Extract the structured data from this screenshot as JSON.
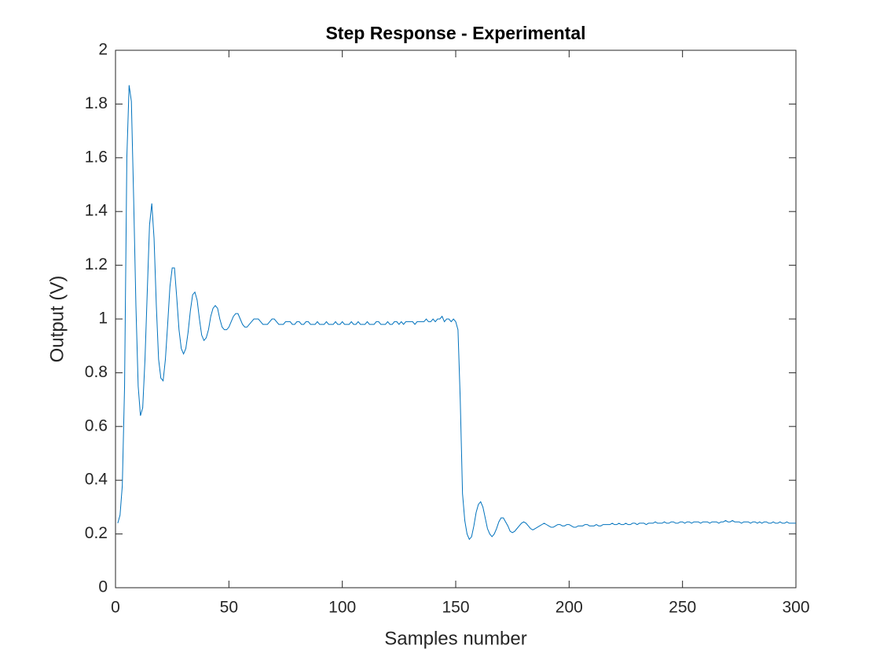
{
  "chart_data": {
    "type": "line",
    "title": "Step Response - Experimental",
    "x_label": "Samples number",
    "y_label": "Output (V)",
    "xlim": [
      0,
      300
    ],
    "ylim": [
      0,
      2
    ],
    "xticks": [
      0,
      50,
      100,
      150,
      200,
      250,
      300
    ],
    "yticks": [
      0,
      0.2,
      0.4,
      0.6,
      0.8,
      1,
      1.2,
      1.4,
      1.6,
      1.8,
      2
    ],
    "grid": false,
    "x": [
      1,
      2,
      3,
      4,
      5,
      6,
      7,
      8,
      9,
      10,
      11,
      12,
      13,
      14,
      15,
      16,
      17,
      18,
      19,
      20,
      21,
      22,
      23,
      24,
      25,
      26,
      27,
      28,
      29,
      30,
      31,
      32,
      33,
      34,
      35,
      36,
      37,
      38,
      39,
      40,
      41,
      42,
      43,
      44,
      45,
      46,
      47,
      48,
      49,
      50,
      51,
      52,
      53,
      54,
      55,
      56,
      57,
      58,
      59,
      60,
      61,
      62,
      63,
      64,
      65,
      66,
      67,
      68,
      69,
      70,
      71,
      72,
      73,
      74,
      75,
      76,
      77,
      78,
      79,
      80,
      81,
      82,
      83,
      84,
      85,
      86,
      87,
      88,
      89,
      90,
      91,
      92,
      93,
      94,
      95,
      96,
      97,
      98,
      99,
      100,
      101,
      102,
      103,
      104,
      105,
      106,
      107,
      108,
      109,
      110,
      111,
      112,
      113,
      114,
      115,
      116,
      117,
      118,
      119,
      120,
      121,
      122,
      123,
      124,
      125,
      126,
      127,
      128,
      129,
      130,
      131,
      132,
      133,
      134,
      135,
      136,
      137,
      138,
      139,
      140,
      141,
      142,
      143,
      144,
      145,
      146,
      147,
      148,
      149,
      150,
      151,
      152,
      153,
      154,
      155,
      156,
      157,
      158,
      159,
      160,
      161,
      162,
      163,
      164,
      165,
      166,
      167,
      168,
      169,
      170,
      171,
      172,
      173,
      174,
      175,
      176,
      177,
      178,
      179,
      180,
      181,
      182,
      183,
      184,
      185,
      186,
      187,
      188,
      189,
      190,
      191,
      192,
      193,
      194,
      195,
      196,
      197,
      198,
      199,
      200,
      201,
      202,
      203,
      204,
      205,
      206,
      207,
      208,
      209,
      210,
      211,
      212,
      213,
      214,
      215,
      216,
      217,
      218,
      219,
      220,
      221,
      222,
      223,
      224,
      225,
      226,
      227,
      228,
      229,
      230,
      231,
      232,
      233,
      234,
      235,
      236,
      237,
      238,
      239,
      240,
      241,
      242,
      243,
      244,
      245,
      246,
      247,
      248,
      249,
      250,
      251,
      252,
      253,
      254,
      255,
      256,
      257,
      258,
      259,
      260,
      261,
      262,
      263,
      264,
      265,
      266,
      267,
      268,
      269,
      270,
      271,
      272,
      273,
      274,
      275,
      276,
      277,
      278,
      279,
      280,
      281,
      282,
      283,
      284,
      285,
      286,
      287,
      288,
      289,
      290,
      291,
      292,
      293,
      294,
      295,
      296,
      297,
      298,
      299,
      300
    ],
    "series": [
      {
        "color": "#0072bd",
        "values": [
          0.24,
          0.27,
          0.38,
          0.75,
          1.6,
          1.87,
          1.81,
          1.45,
          1.05,
          0.75,
          0.64,
          0.67,
          0.85,
          1.1,
          1.35,
          1.43,
          1.3,
          1.05,
          0.85,
          0.78,
          0.77,
          0.85,
          0.98,
          1.12,
          1.19,
          1.19,
          1.08,
          0.96,
          0.89,
          0.87,
          0.89,
          0.95,
          1.03,
          1.09,
          1.1,
          1.07,
          1,
          0.94,
          0.92,
          0.93,
          0.96,
          1.01,
          1.04,
          1.05,
          1.04,
          1,
          0.97,
          0.96,
          0.96,
          0.97,
          0.99,
          1.01,
          1.02,
          1.02,
          1,
          0.98,
          0.97,
          0.97,
          0.98,
          0.99,
          1,
          1,
          1,
          0.99,
          0.98,
          0.98,
          0.98,
          0.99,
          1,
          1,
          0.99,
          0.98,
          0.98,
          0.98,
          0.99,
          0.99,
          0.99,
          0.98,
          0.98,
          0.99,
          0.99,
          0.98,
          0.98,
          0.99,
          0.99,
          0.98,
          0.98,
          0.98,
          0.99,
          0.98,
          0.98,
          0.98,
          0.99,
          0.98,
          0.98,
          0.98,
          0.99,
          0.98,
          0.98,
          0.99,
          0.98,
          0.98,
          0.98,
          0.99,
          0.98,
          0.98,
          0.99,
          0.98,
          0.98,
          0.98,
          0.99,
          0.98,
          0.98,
          0.98,
          0.99,
          0.99,
          0.98,
          0.98,
          0.98,
          0.99,
          0.98,
          0.98,
          0.99,
          0.99,
          0.98,
          0.99,
          0.98,
          0.99,
          0.99,
          0.99,
          0.99,
          0.98,
          0.99,
          0.99,
          0.99,
          0.99,
          1,
          0.99,
          0.99,
          1,
          0.99,
          1,
          1,
          1.01,
          0.99,
          1,
          1,
          0.99,
          1,
          0.99,
          0.96,
          0.7,
          0.35,
          0.25,
          0.2,
          0.18,
          0.19,
          0.23,
          0.28,
          0.31,
          0.32,
          0.3,
          0.26,
          0.22,
          0.2,
          0.19,
          0.2,
          0.22,
          0.245,
          0.26,
          0.26,
          0.245,
          0.23,
          0.21,
          0.205,
          0.21,
          0.22,
          0.23,
          0.24,
          0.245,
          0.24,
          0.23,
          0.22,
          0.215,
          0.22,
          0.225,
          0.23,
          0.235,
          0.24,
          0.235,
          0.23,
          0.225,
          0.225,
          0.23,
          0.235,
          0.235,
          0.23,
          0.23,
          0.235,
          0.235,
          0.23,
          0.225,
          0.225,
          0.23,
          0.23,
          0.23,
          0.235,
          0.235,
          0.23,
          0.23,
          0.23,
          0.235,
          0.23,
          0.23,
          0.235,
          0.235,
          0.235,
          0.235,
          0.24,
          0.235,
          0.235,
          0.24,
          0.235,
          0.235,
          0.24,
          0.235,
          0.235,
          0.24,
          0.24,
          0.235,
          0.24,
          0.24,
          0.24,
          0.235,
          0.24,
          0.24,
          0.24,
          0.245,
          0.24,
          0.24,
          0.24,
          0.245,
          0.24,
          0.24,
          0.245,
          0.245,
          0.24,
          0.24,
          0.245,
          0.245,
          0.24,
          0.245,
          0.245,
          0.24,
          0.245,
          0.245,
          0.245,
          0.24,
          0.245,
          0.245,
          0.245,
          0.24,
          0.245,
          0.245,
          0.245,
          0.24,
          0.245,
          0.245,
          0.25,
          0.245,
          0.245,
          0.25,
          0.245,
          0.245,
          0.245,
          0.24,
          0.245,
          0.245,
          0.245,
          0.24,
          0.245,
          0.245,
          0.24,
          0.245,
          0.24,
          0.245,
          0.245,
          0.24,
          0.24,
          0.245,
          0.24,
          0.24,
          0.245,
          0.24,
          0.24,
          0.245,
          0.24,
          0.24,
          0.24,
          0.24
        ]
      }
    ]
  }
}
